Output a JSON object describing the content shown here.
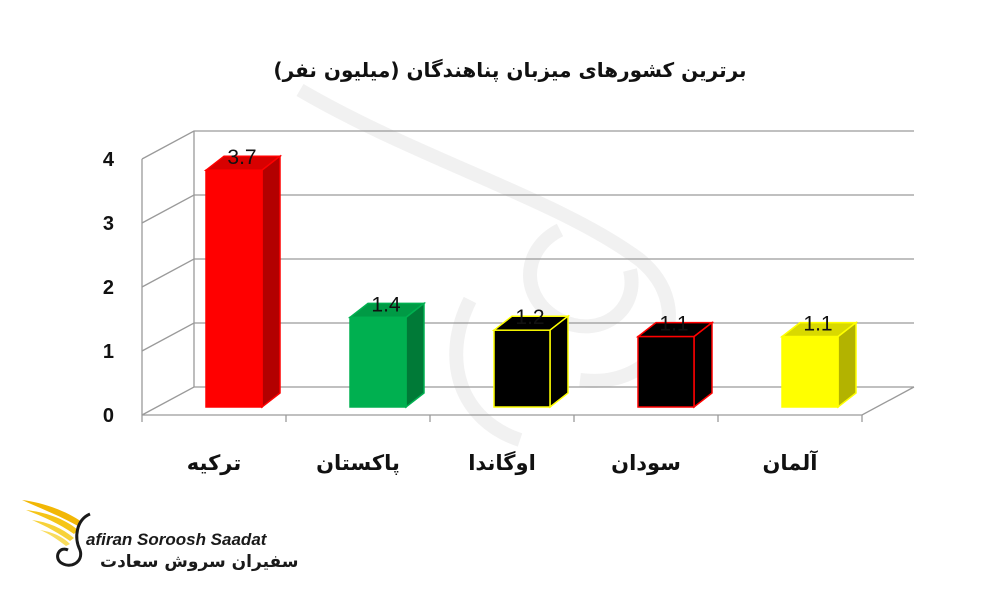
{
  "chart_data": {
    "type": "bar",
    "title": "برترین کشورهای میزبان پناهندگان (میلیون نفر)",
    "categories": [
      "ترکیه",
      "پاکستان",
      "اوگاندا",
      "سودان",
      "آلمان"
    ],
    "values": [
      3.7,
      1.4,
      1.2,
      1.1,
      1.1
    ],
    "data_labels": [
      "3.7",
      "1.4",
      "1.2",
      "1.1",
      "1.1"
    ],
    "yticks": [
      "0",
      "1",
      "2",
      "3",
      "4"
    ],
    "ylim": [
      0,
      4
    ],
    "grid": true,
    "bar_colors": [
      {
        "front": "#ff0000",
        "side": "#b30000",
        "top": "#d80000",
        "edge": "#ff0000"
      },
      {
        "front": "#00b050",
        "side": "#007a37",
        "top": "#009a45",
        "edge": "#00b050"
      },
      {
        "front": "#000000",
        "side": "#000000",
        "top": "#000000",
        "edge": "#ffff00"
      },
      {
        "front": "#000000",
        "side": "#000000",
        "top": "#000000",
        "edge": "#ff0000"
      },
      {
        "front": "#ffff00",
        "side": "#b3b300",
        "top": "#d9d900",
        "edge": "#ffff00"
      }
    ]
  },
  "logo": {
    "name_en": "afiran Soroosh Saadat",
    "name_fa": "سفیران سروش سعادت"
  }
}
